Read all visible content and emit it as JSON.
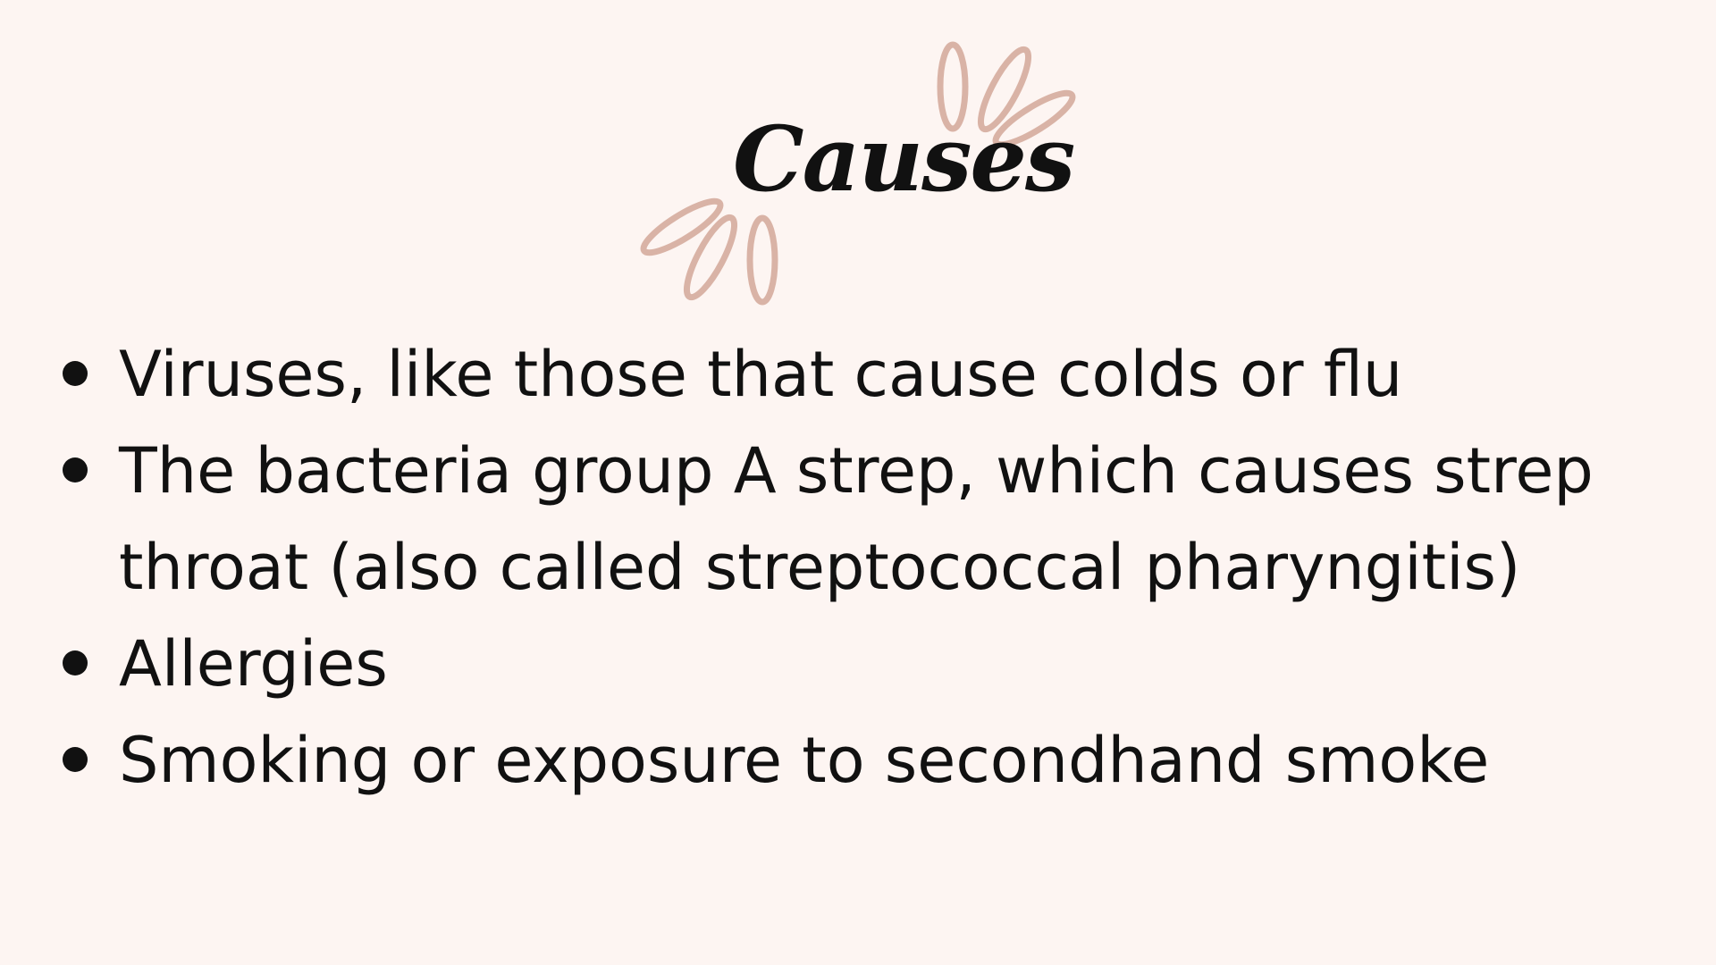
{
  "title": "Causes",
  "accent_color": "#d9b3a6",
  "text_color": "#111111",
  "background_color": "#fdf5f2",
  "bullets": [
    {
      "lines": [
        "Viruses, like those that cause colds or flu"
      ]
    },
    {
      "lines": [
        "The bacteria group A strep, which causes strep",
        "throat (also called streptococcal pharyngitis)"
      ]
    },
    {
      "lines": [
        "Allergies"
      ]
    },
    {
      "lines": [
        "Smoking or exposure to secondhand smoke"
      ]
    }
  ]
}
